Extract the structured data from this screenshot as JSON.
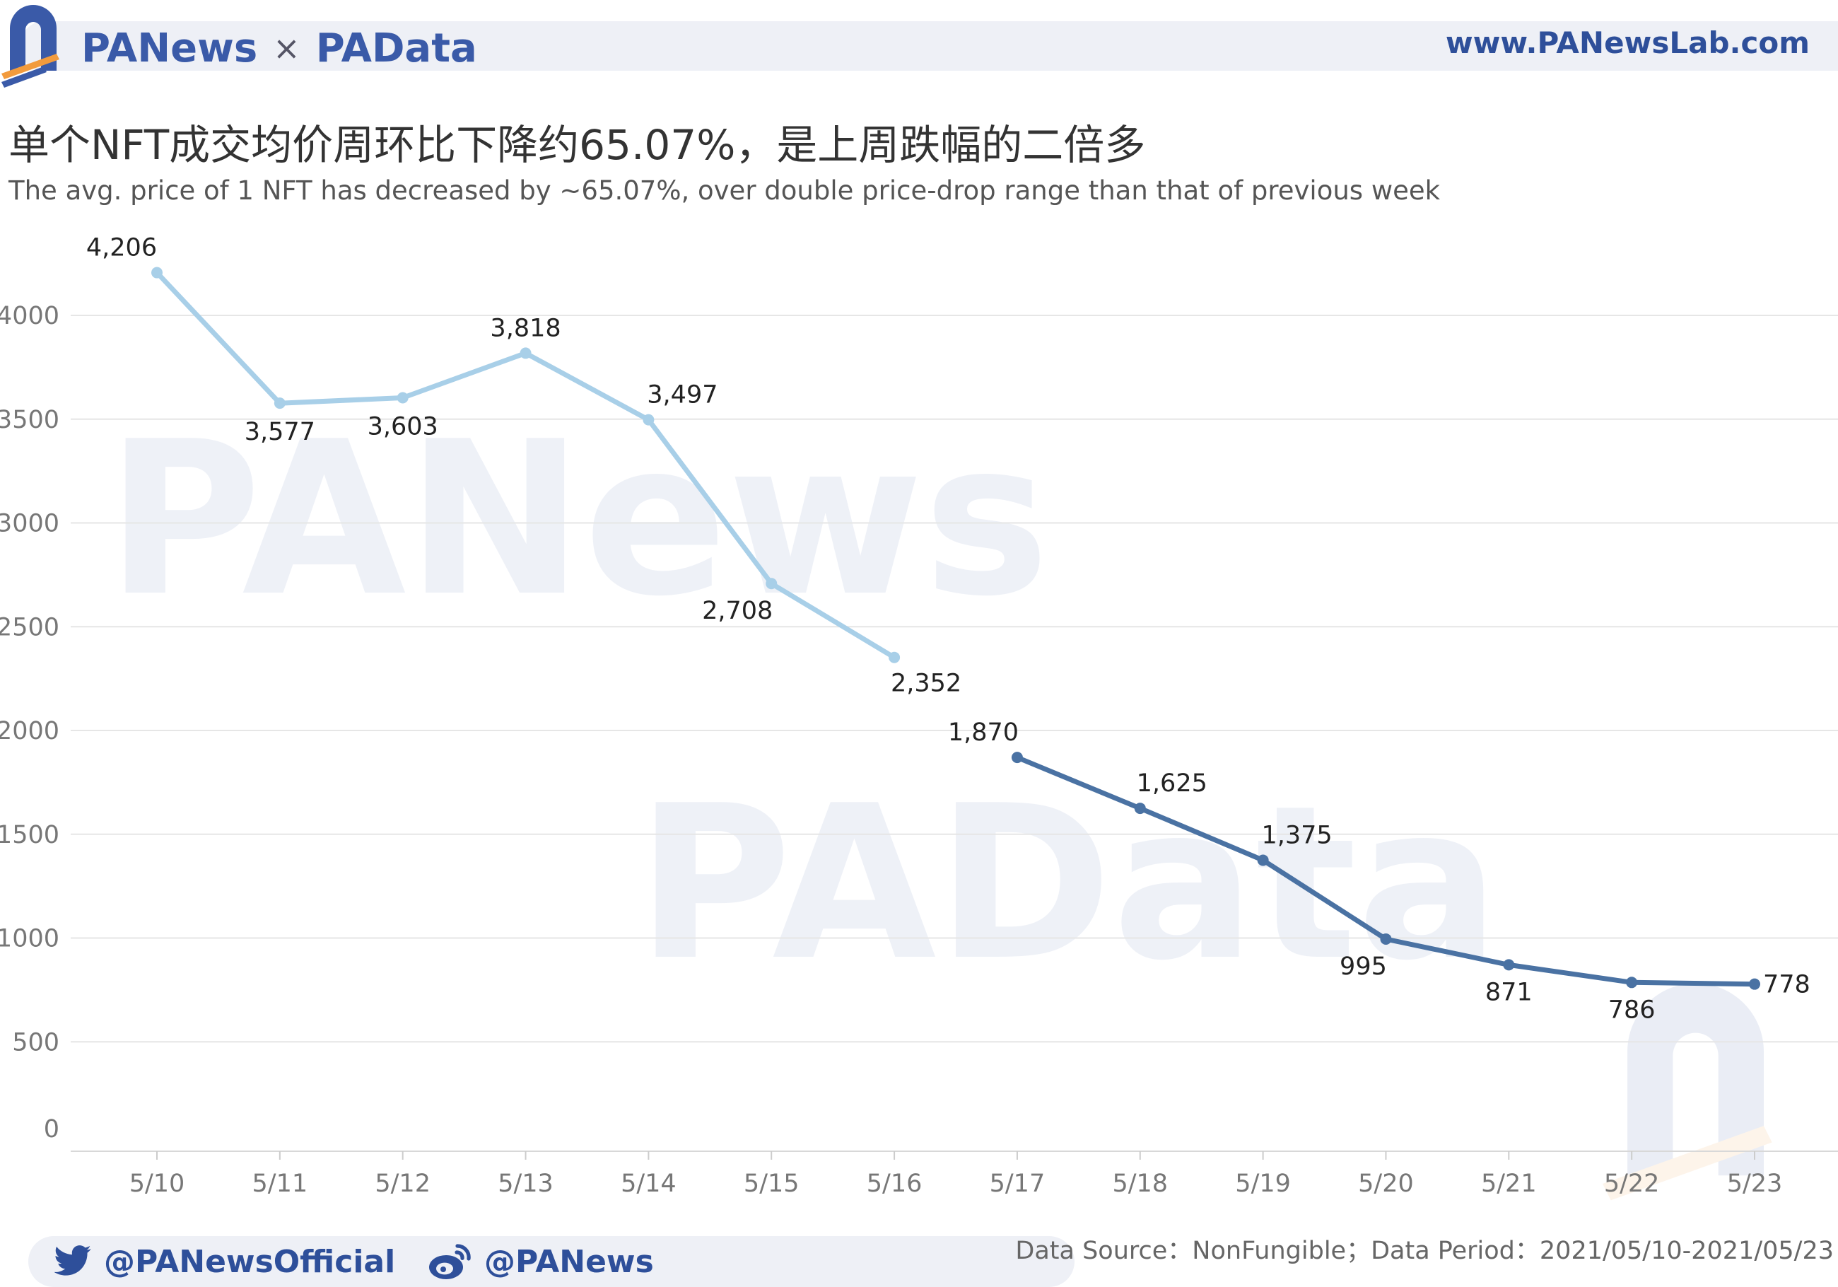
{
  "header": {
    "brand_left": "PANews",
    "brand_sep": "×",
    "brand_right": "PAData",
    "url": "www.PANewsLab.com"
  },
  "title_cn": "单个NFT成交均价周环比下降约65.07%，是上周跌幅的二倍多",
  "title_en": "The avg. price of 1 NFT has decreased by ~65.07%, over double price-drop range than that of previous week",
  "watermarks": {
    "top": "PANews",
    "bottom": "PAData"
  },
  "footer": {
    "twitter": "@PANewsOfficial",
    "weibo": "@PANews",
    "source": "Data Source：NonFungible；Data Period：2021/05/10-2021/05/23"
  },
  "colors": {
    "week1": "#a8cfe8",
    "week2": "#4a72a3",
    "brand": "#3a5aa8",
    "accent_orange": "#f29b3d",
    "grid": "#e6e6e6"
  },
  "icons": {
    "twitter": "twitter-bird-icon",
    "weibo": "weibo-icon"
  },
  "chart_data": {
    "type": "line",
    "categories": [
      "5/10",
      "5/11",
      "5/12",
      "5/13",
      "5/14",
      "5/15",
      "5/16",
      "5/17",
      "5/18",
      "5/19",
      "5/20",
      "5/21",
      "5/22",
      "5/23"
    ],
    "series": [
      {
        "values": [
          4206,
          3577,
          3603,
          3818,
          3497,
          2708,
          2352,
          null,
          null,
          null,
          null,
          null,
          null,
          null
        ],
        "labels": [
          "4,206",
          "3,577",
          "3,603",
          "3,818",
          "3,497",
          "2,708",
          "2,352"
        ],
        "color": "#a8cfe8"
      },
      {
        "values": [
          null,
          null,
          null,
          null,
          null,
          null,
          null,
          1870,
          1625,
          1375,
          995,
          871,
          786,
          778
        ],
        "labels": [
          "1,870",
          "1,625",
          "1,375",
          "995",
          "871",
          "786",
          "778"
        ],
        "color": "#4a72a3"
      }
    ],
    "y_ticks": [
      "0",
      "500",
      "1000",
      "1500",
      "2000",
      "2500",
      "3000",
      "3500",
      "4000"
    ],
    "ylim": [
      0,
      4350
    ],
    "grid": true,
    "legend": "none"
  }
}
